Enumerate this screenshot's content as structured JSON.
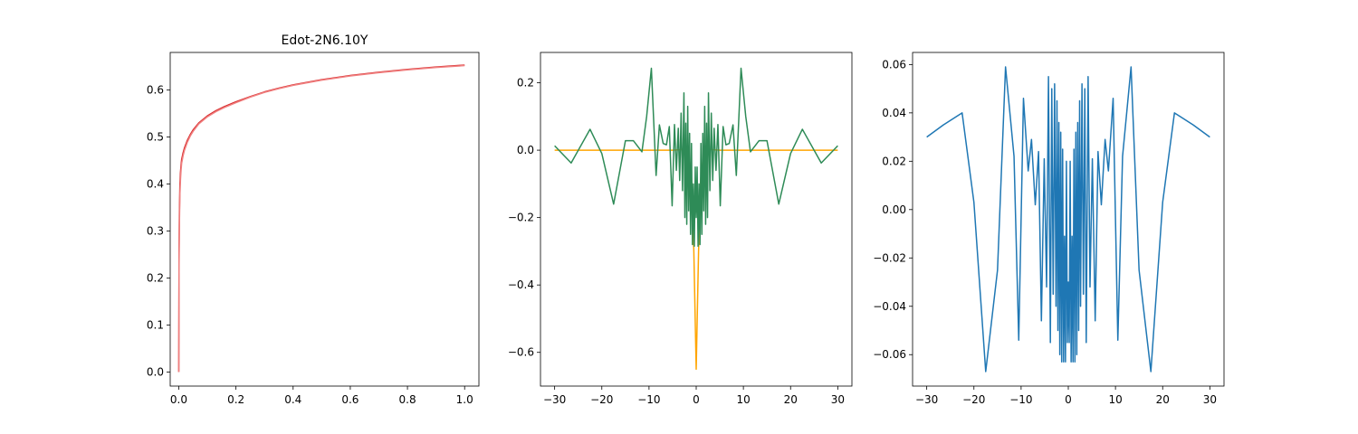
{
  "chart_data": [
    {
      "type": "line",
      "title": "Edot-2N6.10Y",
      "xlabel": "",
      "ylabel": "",
      "xlim": [
        -0.03,
        1.05
      ],
      "ylim": [
        -0.03,
        0.68
      ],
      "xticks": [
        "0.0",
        "0.2",
        "0.4",
        "0.6",
        "0.8",
        "1.0"
      ],
      "yticks": [
        "0.0",
        "0.1",
        "0.2",
        "0.3",
        "0.4",
        "0.5",
        "0.6"
      ],
      "grid": false,
      "series": [
        {
          "color": "#d62728",
          "x": [
            0,
            0.001,
            0.002,
            0.004,
            0.006,
            0.008,
            0.01,
            0.015,
            0.02,
            0.03,
            0.04,
            0.05,
            0.07,
            0.1,
            0.13,
            0.16,
            0.2,
            0.25,
            0.3,
            0.35,
            0.4,
            0.5,
            0.6,
            0.7,
            0.8,
            0.9,
            1.0
          ],
          "y": [
            0.0,
            0.26,
            0.33,
            0.4,
            0.425,
            0.44,
            0.452,
            0.466,
            0.477,
            0.493,
            0.505,
            0.515,
            0.53,
            0.545,
            0.556,
            0.565,
            0.575,
            0.586,
            0.596,
            0.604,
            0.611,
            0.622,
            0.631,
            0.638,
            0.644,
            0.649,
            0.653
          ]
        },
        {
          "color": "#f08080",
          "x": [
            0,
            0.001,
            0.002,
            0.004,
            0.006,
            0.008,
            0.01,
            0.015,
            0.02,
            0.03,
            0.04,
            0.05,
            0.07,
            0.1,
            0.13,
            0.16,
            0.2,
            0.25,
            0.3,
            0.35,
            0.4,
            0.5,
            0.6,
            0.7,
            0.8,
            0.9,
            1.0
          ],
          "y": [
            0.0,
            0.24,
            0.31,
            0.38,
            0.41,
            0.43,
            0.444,
            0.46,
            0.472,
            0.489,
            0.502,
            0.512,
            0.528,
            0.543,
            0.554,
            0.563,
            0.573,
            0.585,
            0.595,
            0.603,
            0.61,
            0.621,
            0.63,
            0.637,
            0.643,
            0.648,
            0.652
          ]
        }
      ]
    },
    {
      "type": "line",
      "title": "",
      "xlabel": "",
      "ylabel": "",
      "xlim": [
        -33,
        33
      ],
      "ylim": [
        -0.7,
        0.29
      ],
      "xticks": [
        "-30",
        "-20",
        "-10",
        "0",
        "10",
        "20",
        "30"
      ],
      "yticks": [
        "-0.6",
        "-0.4",
        "-0.2",
        "0.0",
        "0.2"
      ],
      "grid": false,
      "series": [
        {
          "color": "#ffa500",
          "x": [
            -30,
            -20,
            -10,
            -5,
            -3,
            -2,
            -1.5,
            -1,
            -0.5,
            0,
            0.5,
            1,
            1.5,
            2,
            3,
            5,
            10,
            20,
            30
          ],
          "y": [
            0.0,
            0.0,
            0.0,
            0.0,
            0.002,
            0.0,
            -0.02,
            -0.08,
            -0.3,
            -0.65,
            -0.3,
            -0.08,
            -0.02,
            0.0,
            0.002,
            0.0,
            0.0,
            0.0,
            0.0
          ],
          "mirror": false
        },
        {
          "color": "#2e8b57",
          "x": [
            -30,
            -26.5,
            -22.5,
            -20,
            -17.5,
            -15,
            -13.3,
            -11.5,
            -10.5,
            -9.5,
            -8.5,
            -7.8,
            -7,
            -6.3,
            -5.7,
            -5.1,
            -4.6,
            -4.2,
            -3.8,
            -3.5,
            -3.2,
            -2.9,
            -2.6,
            -2.4,
            -2.2,
            -2.0,
            -1.8,
            -1.6,
            -1.4,
            -1.2,
            -1.0,
            -0.8,
            -0.6,
            -0.4,
            -0.2,
            0,
            0.2,
            0.4,
            0.6,
            0.8,
            1.0,
            1.2,
            1.4,
            1.6,
            1.8,
            2.0,
            2.2,
            2.4,
            2.6,
            2.9,
            3.2,
            3.5,
            3.8,
            4.2,
            4.6,
            5.1,
            5.7,
            6.3,
            7,
            7.8,
            8.5,
            9.5,
            10.5,
            11.5,
            13.3,
            15,
            17.5,
            20,
            22.5,
            26.5,
            30
          ],
          "y": [
            0.013,
            -0.038,
            0.062,
            -0.01,
            -0.16,
            0.028,
            0.028,
            -0.005,
            0.1,
            0.243,
            -0.075,
            0.075,
            0.02,
            0.016,
            0.07,
            -0.165,
            0.076,
            -0.06,
            0.065,
            -0.09,
            0.11,
            -0.12,
            0.17,
            -0.2,
            0.08,
            -0.22,
            0.13,
            -0.18,
            0.05,
            -0.25,
            0.02,
            -0.28,
            -0.1,
            -0.285,
            -0.05,
            -0.2,
            -0.05,
            -0.285,
            -0.1,
            -0.28,
            0.02,
            -0.25,
            0.05,
            -0.18,
            0.13,
            -0.22,
            0.08,
            -0.2,
            0.17,
            -0.12,
            0.11,
            -0.09,
            0.065,
            -0.06,
            0.076,
            -0.165,
            0.07,
            0.016,
            0.02,
            0.075,
            -0.075,
            0.243,
            0.1,
            -0.005,
            0.028,
            0.028,
            -0.16,
            -0.01,
            0.062,
            -0.038,
            0.013
          ]
        }
      ]
    },
    {
      "type": "line",
      "title": "",
      "xlabel": "",
      "ylabel": "",
      "xlim": [
        -33,
        33
      ],
      "ylim": [
        -0.073,
        0.065
      ],
      "xticks": [
        "-30",
        "-20",
        "-10",
        "0",
        "10",
        "20",
        "30"
      ],
      "yticks": [
        "-0.06",
        "-0.04",
        "-0.02",
        "0.00",
        "0.02",
        "0.04",
        "0.06"
      ],
      "grid": false,
      "series": [
        {
          "color": "#1f77b4",
          "x": [
            -30,
            -26.5,
            -22.5,
            -20,
            -17.5,
            -15,
            -13.3,
            -11.5,
            -10.5,
            -9.5,
            -8.5,
            -7.8,
            -7,
            -6.3,
            -5.7,
            -5.1,
            -4.6,
            -4.2,
            -3.8,
            -3.5,
            -3.2,
            -2.9,
            -2.6,
            -2.4,
            -2.2,
            -2.0,
            -1.8,
            -1.6,
            -1.4,
            -1.2,
            -1.0,
            -0.8,
            -0.6,
            -0.4,
            -0.2,
            0,
            0.2,
            0.4,
            0.6,
            0.8,
            1.0,
            1.2,
            1.4,
            1.6,
            1.8,
            2.0,
            2.2,
            2.4,
            2.6,
            2.9,
            3.2,
            3.5,
            3.8,
            4.2,
            4.6,
            5.1,
            5.7,
            6.3,
            7,
            7.8,
            8.5,
            9.5,
            10.5,
            11.5,
            13.3,
            15,
            17.5,
            20,
            22.5,
            26.5,
            30
          ],
          "y": [
            0.03,
            0.035,
            0.04,
            0.003,
            -0.067,
            -0.025,
            0.059,
            0.022,
            -0.054,
            0.046,
            0.016,
            0.029,
            0.002,
            0.024,
            -0.046,
            0.021,
            -0.032,
            0.055,
            -0.055,
            0.05,
            -0.035,
            0.052,
            -0.04,
            0.045,
            -0.05,
            0.036,
            -0.06,
            0.032,
            -0.063,
            0.025,
            -0.063,
            -0.011,
            -0.063,
            0.02,
            -0.055,
            -0.03,
            -0.055,
            0.02,
            -0.063,
            -0.011,
            -0.063,
            0.025,
            -0.063,
            0.032,
            -0.06,
            0.036,
            -0.05,
            0.045,
            -0.04,
            0.052,
            -0.035,
            0.05,
            -0.055,
            0.055,
            -0.032,
            0.021,
            -0.046,
            0.024,
            0.002,
            0.029,
            0.016,
            0.046,
            -0.054,
            0.022,
            0.059,
            -0.025,
            -0.067,
            0.003,
            0.04,
            0.035,
            0.03
          ]
        }
      ]
    }
  ]
}
